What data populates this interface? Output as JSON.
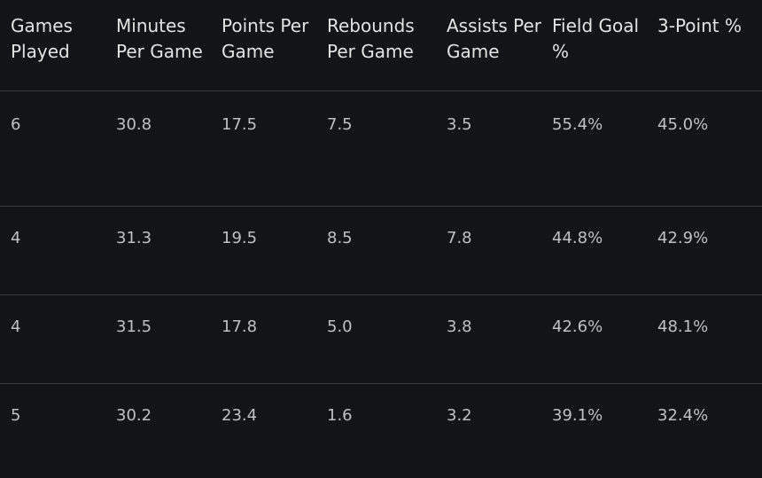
{
  "table": {
    "headers": [
      "Games Played",
      "Minutes Per Game",
      "Points Per Game",
      "Rebounds Per Game",
      "Assists Per Game",
      "Field Goal %",
      "3-Point %"
    ],
    "rows": [
      [
        "6",
        "30.8",
        "17.5",
        "7.5",
        "3.5",
        "55.4%",
        "45.0%"
      ],
      [
        "4",
        "31.3",
        "19.5",
        "8.5",
        "7.8",
        "44.8%",
        "42.9%"
      ],
      [
        "4",
        "31.5",
        "17.8",
        "5.0",
        "3.8",
        "42.6%",
        "48.1%"
      ],
      [
        "5",
        "30.2",
        "23.4",
        "1.6",
        "3.2",
        "39.1%",
        "32.4%"
      ]
    ]
  }
}
